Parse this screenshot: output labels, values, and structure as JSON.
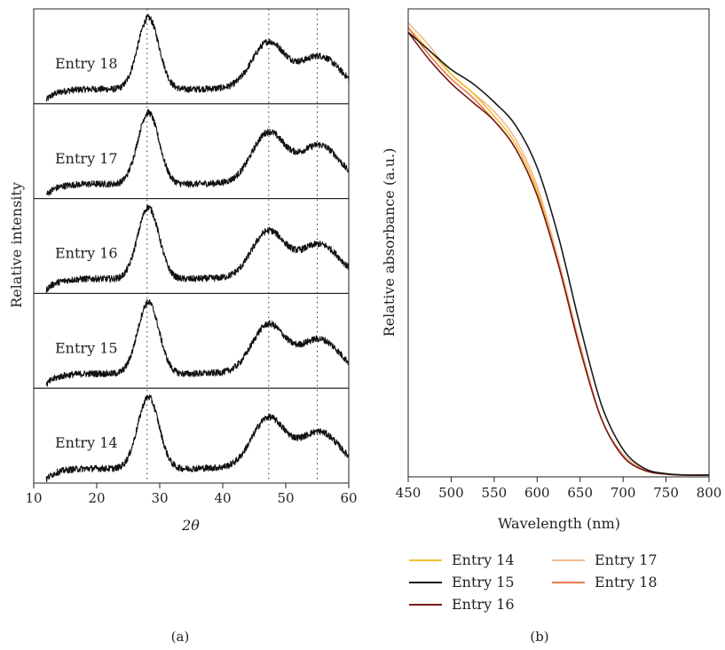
{
  "chart_data": [
    {
      "panel_label": "(a)",
      "type": "line",
      "xlabel": "2θ",
      "ylabel": "Relative intensity",
      "xlim": [
        10,
        60
      ],
      "xticks": [
        "10",
        "20",
        "30",
        "40",
        "50",
        "60"
      ],
      "reference_lines_x": [
        28,
        47.3,
        55
      ],
      "grid": false,
      "series": [
        {
          "name": "Entry 18",
          "peaks": [
            {
              "x": 28.2,
              "height": 1.0
            },
            {
              "x": 47.2,
              "height": 0.64
            },
            {
              "x": 55.4,
              "height": 0.5
            }
          ]
        },
        {
          "name": "Entry 17",
          "peaks": [
            {
              "x": 28.2,
              "height": 1.0
            },
            {
              "x": 47.2,
              "height": 0.7
            },
            {
              "x": 55.4,
              "height": 0.58
            }
          ]
        },
        {
          "name": "Entry 16",
          "peaks": [
            {
              "x": 28.2,
              "height": 1.0
            },
            {
              "x": 47.2,
              "height": 0.65
            },
            {
              "x": 55.4,
              "height": 0.52
            }
          ]
        },
        {
          "name": "Entry 15",
          "peaks": [
            {
              "x": 28.2,
              "height": 1.0
            },
            {
              "x": 47.2,
              "height": 0.67
            },
            {
              "x": 55.4,
              "height": 0.52
            }
          ]
        },
        {
          "name": "Entry 14",
          "peaks": [
            {
              "x": 28.2,
              "height": 1.0
            },
            {
              "x": 47.2,
              "height": 0.69
            },
            {
              "x": 55.4,
              "height": 0.55
            }
          ]
        }
      ]
    },
    {
      "panel_label": "(b)",
      "type": "line",
      "xlabel": "Wavelength (nm)",
      "ylabel": "Relative absorbance (a.u.)",
      "xlim": [
        450,
        800
      ],
      "xticks": [
        "450",
        "500",
        "550",
        "600",
        "650",
        "700",
        "750",
        "800"
      ],
      "legend_position": "bottom",
      "grid": false,
      "x": [
        450,
        475,
        500,
        525,
        550,
        575,
        600,
        625,
        650,
        675,
        700,
        725,
        750,
        775,
        800
      ],
      "series": [
        {
          "name": "Entry 14",
          "color": "#f2c12e",
          "values": [
            0.96,
            0.91,
            0.86,
            0.82,
            0.77,
            0.71,
            0.61,
            0.45,
            0.27,
            0.12,
            0.04,
            0.01,
            0.002,
            0.0,
            0.0
          ]
        },
        {
          "name": "Entry 15",
          "color": "#1a1a1a",
          "values": [
            0.95,
            0.91,
            0.87,
            0.84,
            0.8,
            0.75,
            0.66,
            0.51,
            0.32,
            0.15,
            0.055,
            0.014,
            0.003,
            0.0,
            0.0
          ]
        },
        {
          "name": "Entry 16",
          "color": "#7a1a1a",
          "values": [
            0.95,
            0.89,
            0.84,
            0.8,
            0.76,
            0.7,
            0.6,
            0.45,
            0.27,
            0.12,
            0.04,
            0.01,
            0.002,
            0.0,
            0.0
          ]
        },
        {
          "name": "Entry 17",
          "color": "#f2b98f",
          "values": [
            0.97,
            0.92,
            0.86,
            0.82,
            0.78,
            0.72,
            0.62,
            0.46,
            0.28,
            0.12,
            0.045,
            0.012,
            0.003,
            0.0,
            0.0
          ]
        },
        {
          "name": "Entry 18",
          "color": "#ee7a4a",
          "values": [
            0.96,
            0.9,
            0.85,
            0.81,
            0.76,
            0.7,
            0.6,
            0.45,
            0.27,
            0.12,
            0.04,
            0.01,
            0.002,
            0.0,
            0.0
          ]
        }
      ]
    }
  ]
}
